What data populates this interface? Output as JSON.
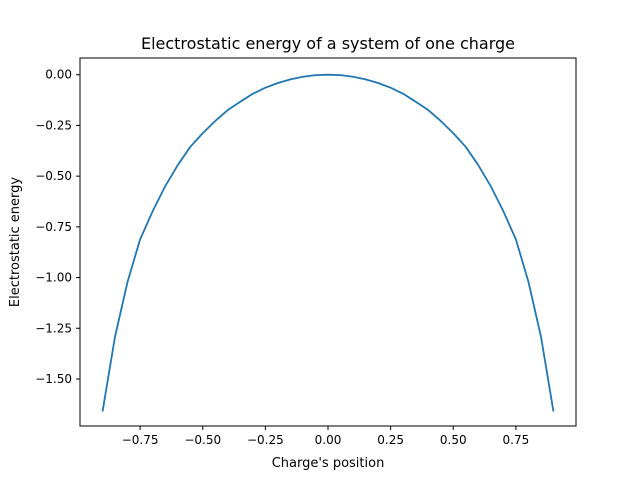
{
  "chart_data": {
    "type": "line",
    "title": "Electrostatic energy of a system of one charge",
    "xlabel": "Charge's position",
    "ylabel": "Electrostatic energy",
    "xlim": [
      -0.99,
      0.99
    ],
    "ylim": [
      -1.7318,
      0.0824
    ],
    "grid": false,
    "x_ticks": [
      -0.75,
      -0.5,
      -0.25,
      0.0,
      0.25,
      0.5,
      0.75
    ],
    "x_tick_labels": [
      "−0.75",
      "−0.50",
      "−0.25",
      "0.00",
      "0.25",
      "0.50",
      "0.75"
    ],
    "y_ticks": [
      0.0,
      -0.25,
      -0.5,
      -0.75,
      -1.0,
      -1.25,
      -1.5
    ],
    "y_tick_labels": [
      "0.00",
      "−0.25",
      "−0.50",
      "−0.75",
      "−1.00",
      "−1.25",
      "−1.50"
    ],
    "series": [
      {
        "color": "#1f77b4",
        "x": [
          -0.9,
          -0.85,
          -0.8,
          -0.75,
          -0.7,
          -0.65,
          -0.6,
          -0.55,
          -0.5,
          -0.45,
          -0.4,
          -0.35,
          -0.3,
          -0.25,
          -0.2,
          -0.15,
          -0.1,
          -0.05,
          0.0,
          0.05,
          0.1,
          0.15,
          0.2,
          0.25,
          0.3,
          0.35,
          0.4,
          0.45,
          0.5,
          0.55,
          0.6,
          0.65,
          0.7,
          0.75,
          0.8,
          0.85,
          0.9
        ],
        "y": [
          -1.66,
          -1.29,
          -1.02,
          -0.812,
          -0.673,
          -0.55,
          -0.446,
          -0.356,
          -0.288,
          -0.228,
          -0.174,
          -0.133,
          -0.094,
          -0.064,
          -0.041,
          -0.023,
          -0.01,
          -0.002,
          0.0,
          -0.002,
          -0.01,
          -0.023,
          -0.041,
          -0.064,
          -0.094,
          -0.133,
          -0.174,
          -0.228,
          -0.288,
          -0.356,
          -0.446,
          -0.55,
          -0.673,
          -0.812,
          -1.02,
          -1.29,
          -1.66
        ]
      }
    ]
  }
}
